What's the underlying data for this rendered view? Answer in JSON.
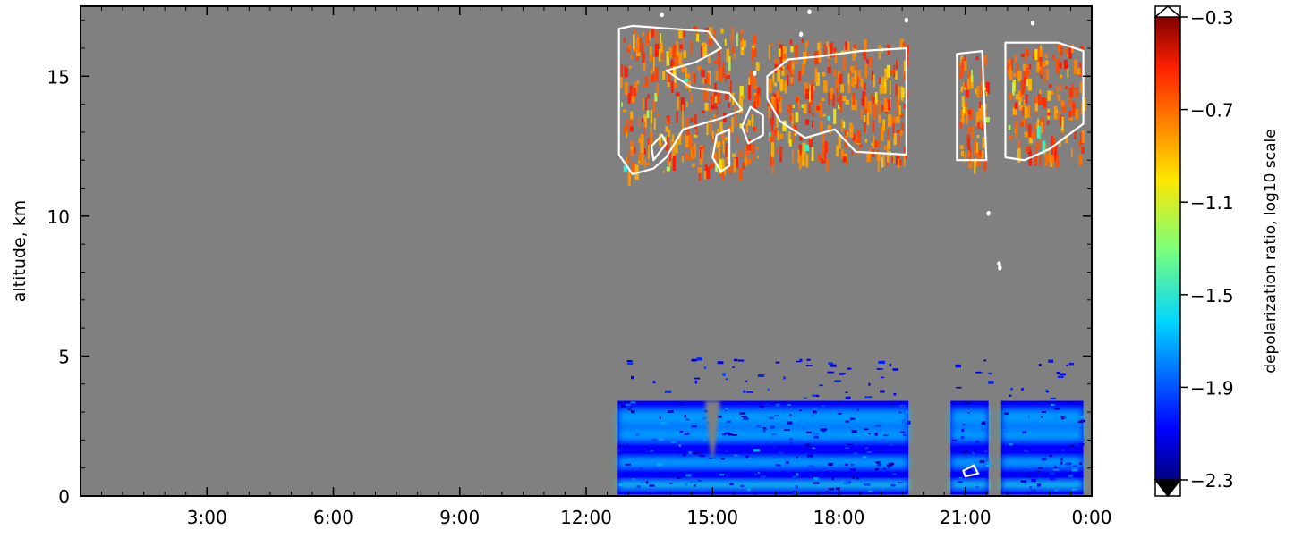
{
  "chart_data": {
    "type": "heatmap",
    "title": "",
    "xlabel": "",
    "ylabel": "altitude, km",
    "x_ticks": [
      "3:00",
      "6:00",
      "9:00",
      "12:00",
      "15:00",
      "18:00",
      "21:00",
      "0:00"
    ],
    "x_tick_hours": [
      3,
      6,
      9,
      12,
      15,
      18,
      21,
      24
    ],
    "xlim_hours": [
      0,
      24
    ],
    "y_ticks": [
      "0",
      "5",
      "10",
      "15"
    ],
    "y_tick_values": [
      0,
      5,
      10,
      15
    ],
    "ylim": [
      0,
      17.5
    ],
    "background_color": "#808080",
    "no_data_color": "#808080",
    "grid": false,
    "colorbar": {
      "label": "depolarization ratio, log10 scale",
      "scale": "log10",
      "range": [
        -2.3,
        -0.3
      ],
      "ticks": [
        "−2.3",
        "−1.9",
        "−1.5",
        "−1.1",
        "−0.7",
        "−0.3"
      ],
      "tick_values": [
        -2.3,
        -1.9,
        -1.5,
        -1.1,
        -0.7,
        -0.3
      ],
      "colormap": "jet",
      "over_color": "#ffffff",
      "under_color": "#000000",
      "position": "right"
    },
    "data_segments_hours": [
      [
        12.75,
        19.65
      ],
      [
        20.65,
        21.55
      ],
      [
        21.85,
        23.8
      ]
    ],
    "low_layer": {
      "altitude_km": [
        0,
        5
      ],
      "dominant_log10_value": -2.05,
      "band_altitudes_km": [
        0.4,
        1.2,
        2.2,
        2.8
      ],
      "band_log10_value": -1.65,
      "notch_hours": [
        15.0
      ]
    },
    "cirrus_layer": {
      "altitude_km": [
        11.5,
        16.8
      ],
      "dominant_log10_value": -0.75,
      "isolated_values_log10": [
        -1.0,
        -1.2,
        -1.5
      ]
    },
    "contour_color": "#ffffff"
  }
}
